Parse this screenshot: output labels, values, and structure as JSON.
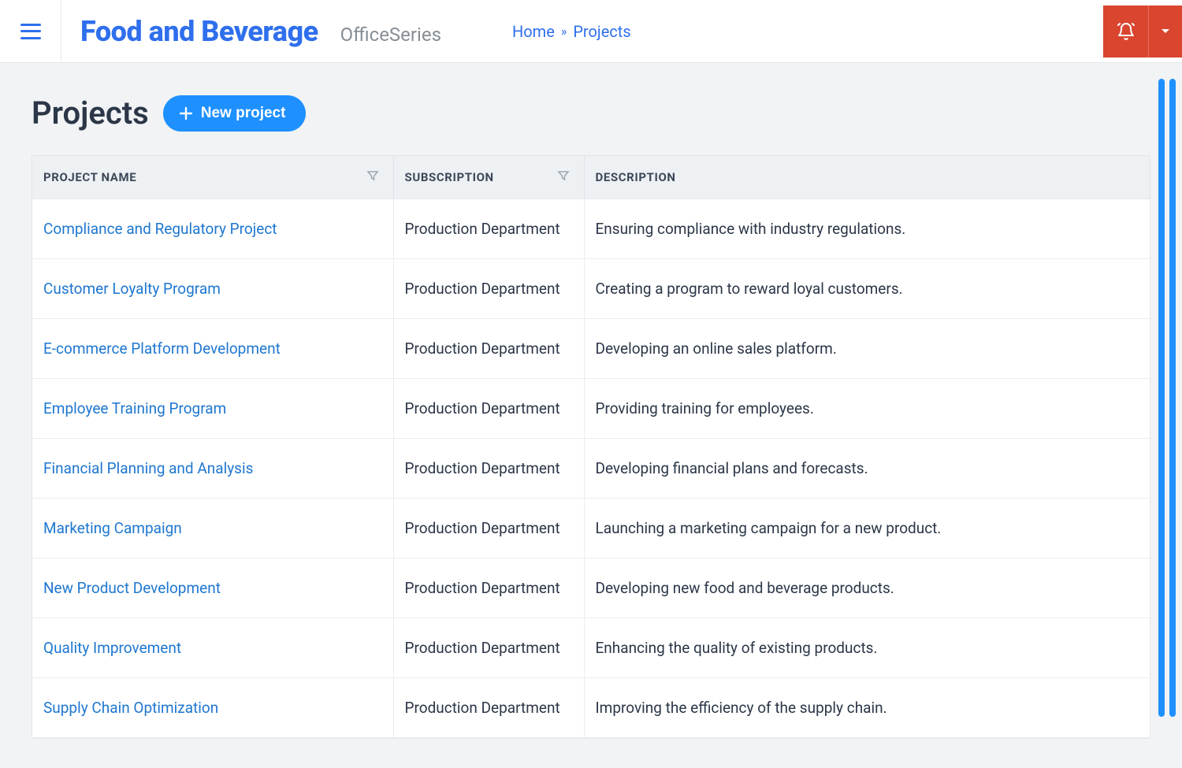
{
  "header": {
    "brand_title": "Food and Beverage",
    "brand_subtitle": "OfficeSeries"
  },
  "breadcrumb": {
    "home": "Home",
    "current": "Projects"
  },
  "page": {
    "title": "Projects",
    "new_button": "New project"
  },
  "table": {
    "columns": {
      "name": "PROJECT NAME",
      "subscription": "SUBSCRIPTION",
      "description": "DESCRIPTION"
    },
    "rows": [
      {
        "name": "Compliance and Regulatory Project",
        "subscription": "Production Department",
        "description": "Ensuring compliance with industry regulations."
      },
      {
        "name": "Customer Loyalty Program",
        "subscription": "Production Department",
        "description": "Creating a program to reward loyal customers."
      },
      {
        "name": "E-commerce Platform Development",
        "subscription": "Production Department",
        "description": "Developing an online sales platform."
      },
      {
        "name": "Employee Training Program",
        "subscription": "Production Department",
        "description": "Providing training for employees."
      },
      {
        "name": "Financial Planning and Analysis",
        "subscription": "Production Department",
        "description": "Developing financial plans and forecasts."
      },
      {
        "name": "Marketing Campaign",
        "subscription": "Production Department",
        "description": "Launching a marketing campaign for a new product."
      },
      {
        "name": "New Product Development",
        "subscription": "Production Department",
        "description": "Developing new food and beverage products."
      },
      {
        "name": "Quality Improvement",
        "subscription": "Production Department",
        "description": "Enhancing the quality of existing products."
      },
      {
        "name": "Supply Chain Optimization",
        "subscription": "Production Department",
        "description": "Improving the efficiency of the supply chain."
      }
    ]
  },
  "colors": {
    "accent": "#2f6fed",
    "button": "#1e90ff",
    "danger": "#d9452f",
    "text": "#2b3647",
    "muted": "#868e96",
    "header_bg": "#eef1f4",
    "border": "#e2e6ea",
    "page_bg": "#f1f3f5"
  }
}
